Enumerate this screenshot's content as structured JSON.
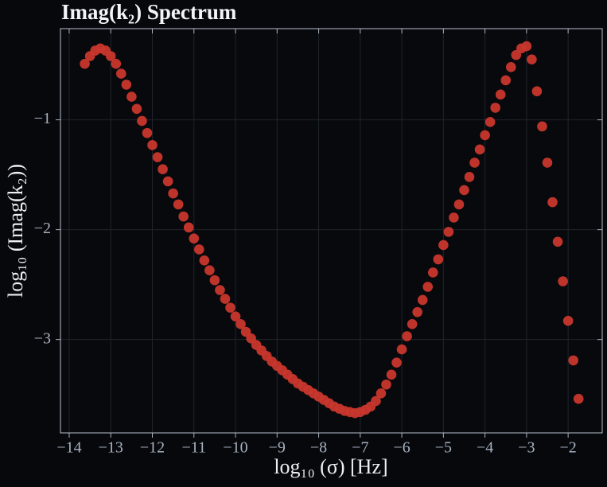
{
  "chart_data": {
    "type": "scatter",
    "title": "Imag(k₂) Spectrum",
    "x_label": "log₁₀ (σ) [Hz]",
    "y_label": "log₁₀ (Imag(k₂))",
    "x": [
      -13.625,
      -13.5,
      -13.375,
      -13.25,
      -13.125,
      -13,
      -12.875,
      -12.75,
      -12.625,
      -12.5,
      -12.375,
      -12.25,
      -12.125,
      -12,
      -11.875,
      -11.75,
      -11.625,
      -11.5,
      -11.375,
      -11.25,
      -11.125,
      -11,
      -10.875,
      -10.75,
      -10.625,
      -10.5,
      -10.375,
      -10.25,
      -10.125,
      -10,
      -9.875,
      -9.75,
      -9.625,
      -9.5,
      -9.375,
      -9.25,
      -9.125,
      -9,
      -8.875,
      -8.75,
      -8.625,
      -8.5,
      -8.375,
      -8.25,
      -8.125,
      -8,
      -7.875,
      -7.75,
      -7.625,
      -7.5,
      -7.375,
      -7.25,
      -7.125,
      -7,
      -6.875,
      -6.75,
      -6.625,
      -6.5,
      -6.375,
      -6.25,
      -6.125,
      -6,
      -5.875,
      -5.75,
      -5.625,
      -5.5,
      -5.375,
      -5.25,
      -5.125,
      -5,
      -4.875,
      -4.75,
      -4.625,
      -4.5,
      -4.375,
      -4.25,
      -4.125,
      -4,
      -3.875,
      -3.75,
      -3.625,
      -3.5,
      -3.375,
      -3.25,
      -3.125,
      -3,
      -2.875,
      -2.75,
      -2.625,
      -2.5,
      -2.375,
      -2.25,
      -2.125,
      -2,
      -1.875,
      -1.75
    ],
    "values": [
      -0.49,
      -0.42,
      -0.37,
      -0.35,
      -0.37,
      -0.42,
      -0.49,
      -0.58,
      -0.68,
      -0.79,
      -0.9,
      -1.01,
      -1.12,
      -1.23,
      -1.34,
      -1.45,
      -1.56,
      -1.67,
      -1.77,
      -1.88,
      -1.98,
      -2.08,
      -2.18,
      -2.28,
      -2.37,
      -2.46,
      -2.55,
      -2.63,
      -2.71,
      -2.79,
      -2.86,
      -2.93,
      -2.99,
      -3.05,
      -3.1,
      -3.15,
      -3.2,
      -3.24,
      -3.28,
      -3.32,
      -3.36,
      -3.4,
      -3.43,
      -3.46,
      -3.49,
      -3.52,
      -3.55,
      -3.58,
      -3.61,
      -3.63,
      -3.65,
      -3.66,
      -3.67,
      -3.66,
      -3.64,
      -3.61,
      -3.56,
      -3.49,
      -3.41,
      -3.32,
      -3.21,
      -3.09,
      -2.97,
      -2.86,
      -2.75,
      -2.64,
      -2.52,
      -2.39,
      -2.27,
      -2.14,
      -2.02,
      -1.89,
      -1.77,
      -1.64,
      -1.52,
      -1.39,
      -1.27,
      -1.14,
      -1.02,
      -0.89,
      -0.77,
      -0.64,
      -0.52,
      -0.41,
      -0.35,
      -0.33,
      -0.45,
      -0.74,
      -1.06,
      -1.39,
      -1.75,
      -2.11,
      -2.47,
      -2.83,
      -3.19,
      -3.54
    ],
    "color": "#c8372d",
    "xlim": [
      -14.21,
      -1.18
    ],
    "ylim": [
      -3.85,
      -0.17
    ],
    "xticks": [
      {
        "value": -14,
        "label": "−14"
      },
      {
        "value": -13,
        "label": "−13"
      },
      {
        "value": -12,
        "label": "−12"
      },
      {
        "value": -11,
        "label": "−11"
      },
      {
        "value": -10,
        "label": "−10"
      },
      {
        "value": -9,
        "label": "−9"
      },
      {
        "value": -8,
        "label": "−8"
      },
      {
        "value": -7,
        "label": "−7"
      },
      {
        "value": -6,
        "label": "−6"
      },
      {
        "value": -5,
        "label": "−5"
      },
      {
        "value": -4,
        "label": "−4"
      },
      {
        "value": -3,
        "label": "−3"
      },
      {
        "value": -2,
        "label": "−2"
      }
    ],
    "yticks": [
      {
        "value": -1,
        "label": "−1"
      },
      {
        "value": -2,
        "label": "−2"
      },
      {
        "value": -3,
        "label": "−3"
      }
    ],
    "grid": true
  }
}
